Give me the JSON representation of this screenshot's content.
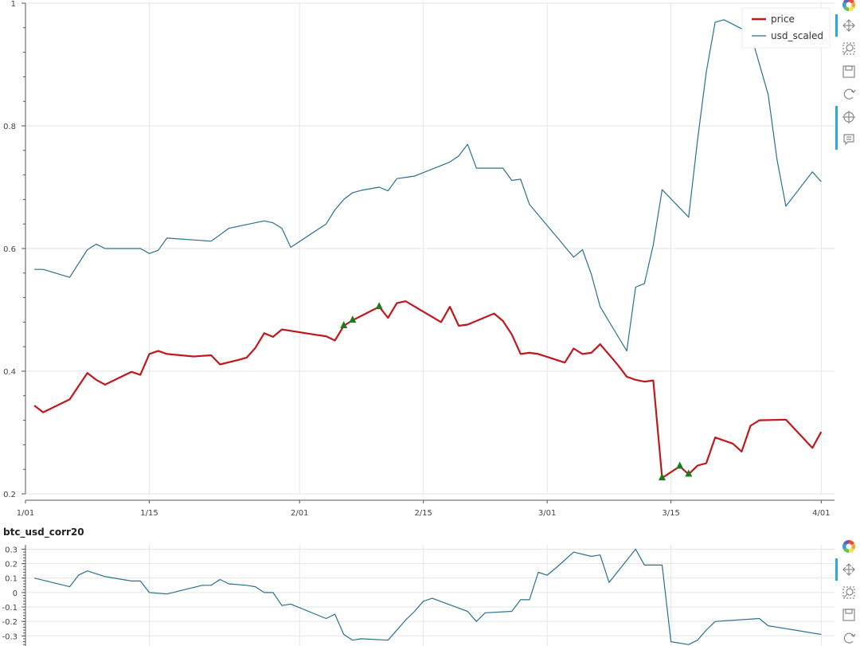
{
  "chart_data": [
    {
      "type": "line",
      "title": "",
      "xlabel": "",
      "ylabel": "",
      "x_tick_labels": [
        "1/01",
        "1/15",
        "2/01",
        "2/15",
        "3/01",
        "3/15",
        "4/01"
      ],
      "y_tick_labels": [
        "0.2",
        "0.4",
        "0.6",
        "0.8",
        "1"
      ],
      "xlim": [
        0,
        91.5
      ],
      "ylim": [
        0.2,
        1.0
      ],
      "grid": true,
      "legend_position": "top-right",
      "series": [
        {
          "name": "price",
          "color": "#c0181c",
          "points": [
            [
              1,
              0.344
            ],
            [
              2,
              0.333
            ],
            [
              5,
              0.354
            ],
            [
              7,
              0.397
            ],
            [
              8,
              0.386
            ],
            [
              9,
              0.378
            ],
            [
              12,
              0.399
            ],
            [
              13,
              0.394
            ],
            [
              14,
              0.428
            ],
            [
              15,
              0.433
            ],
            [
              16,
              0.428
            ],
            [
              19,
              0.424
            ],
            [
              21,
              0.426
            ],
            [
              22,
              0.411
            ],
            [
              24,
              0.418
            ],
            [
              25,
              0.422
            ],
            [
              26,
              0.438
            ],
            [
              27,
              0.462
            ],
            [
              28,
              0.456
            ],
            [
              29,
              0.468
            ],
            [
              33,
              0.459
            ],
            [
              34,
              0.457
            ],
            [
              35,
              0.45
            ],
            [
              36,
              0.474
            ],
            [
              37,
              0.483
            ],
            [
              40,
              0.505
            ],
            [
              41,
              0.487
            ],
            [
              42,
              0.511
            ],
            [
              43,
              0.514
            ],
            [
              47,
              0.48
            ],
            [
              48,
              0.505
            ],
            [
              49,
              0.474
            ],
            [
              50,
              0.476
            ],
            [
              53,
              0.494
            ],
            [
              54,
              0.482
            ],
            [
              55,
              0.46
            ],
            [
              56,
              0.428
            ],
            [
              57,
              0.43
            ],
            [
              58,
              0.428
            ],
            [
              61,
              0.414
            ],
            [
              62,
              0.437
            ],
            [
              63,
              0.428
            ],
            [
              64,
              0.43
            ],
            [
              65,
              0.444
            ],
            [
              67,
              0.41
            ],
            [
              68,
              0.391
            ],
            [
              69,
              0.386
            ],
            [
              70,
              0.383
            ],
            [
              71,
              0.385
            ],
            [
              72,
              0.226
            ],
            [
              74,
              0.245
            ],
            [
              75,
              0.232
            ],
            [
              76,
              0.246
            ],
            [
              77,
              0.25
            ],
            [
              78,
              0.292
            ],
            [
              80,
              0.282
            ],
            [
              81,
              0.269
            ],
            [
              82,
              0.311
            ],
            [
              83,
              0.32
            ],
            [
              86,
              0.321
            ],
            [
              89,
              0.275
            ],
            [
              90,
              0.301
            ]
          ],
          "markers": [
            [
              36,
              0.474
            ],
            [
              37,
              0.483
            ],
            [
              40,
              0.505
            ],
            [
              72,
              0.226
            ],
            [
              74,
              0.245
            ],
            [
              75,
              0.232
            ]
          ]
        },
        {
          "name": "usd_scaled",
          "color": "#2a7090",
          "points": [
            [
              1,
              0.566
            ],
            [
              2,
              0.566
            ],
            [
              5,
              0.553
            ],
            [
              7,
              0.598
            ],
            [
              8,
              0.607
            ],
            [
              9,
              0.6
            ],
            [
              13,
              0.6
            ],
            [
              14,
              0.592
            ],
            [
              15,
              0.597
            ],
            [
              16,
              0.617
            ],
            [
              21,
              0.612
            ],
            [
              23,
              0.633
            ],
            [
              27,
              0.645
            ],
            [
              28,
              0.642
            ],
            [
              29,
              0.633
            ],
            [
              30,
              0.602
            ],
            [
              34,
              0.64
            ],
            [
              35,
              0.663
            ],
            [
              36,
              0.68
            ],
            [
              37,
              0.691
            ],
            [
              38,
              0.695
            ],
            [
              40,
              0.7
            ],
            [
              41,
              0.694
            ],
            [
              42,
              0.714
            ],
            [
              44,
              0.718
            ],
            [
              48,
              0.741
            ],
            [
              49,
              0.751
            ],
            [
              50,
              0.77
            ],
            [
              51,
              0.731
            ],
            [
              54,
              0.731
            ],
            [
              55,
              0.711
            ],
            [
              56,
              0.713
            ],
            [
              57,
              0.672
            ],
            [
              62,
              0.586
            ],
            [
              63,
              0.598
            ],
            [
              64,
              0.558
            ],
            [
              65,
              0.505
            ],
            [
              68,
              0.433
            ],
            [
              69,
              0.537
            ],
            [
              70,
              0.543
            ],
            [
              71,
              0.606
            ],
            [
              72,
              0.696
            ],
            [
              75,
              0.651
            ],
            [
              76,
              0.776
            ],
            [
              77,
              0.888
            ],
            [
              78,
              0.969
            ],
            [
              79,
              0.973
            ],
            [
              82,
              0.951
            ],
            [
              84,
              0.851
            ],
            [
              85,
              0.745
            ],
            [
              86,
              0.669
            ],
            [
              89,
              0.725
            ],
            [
              90,
              0.709
            ]
          ]
        }
      ]
    },
    {
      "type": "line",
      "title": "btc_usd_corr20",
      "xlabel": "",
      "ylabel": "",
      "y_tick_labels": [
        "0.3",
        "0.2",
        "0.1",
        "0",
        "-0.1",
        "-0.2",
        "-0.3"
      ],
      "xlim": [
        0,
        91.5
      ],
      "ylim": [
        -0.37,
        0.33
      ],
      "grid": true,
      "series": [
        {
          "name": "",
          "color": "#2a7090",
          "points": [
            [
              1,
              0.1
            ],
            [
              5,
              0.04
            ],
            [
              6,
              0.12
            ],
            [
              7,
              0.15
            ],
            [
              9,
              0.11
            ],
            [
              12,
              0.08
            ],
            [
              13,
              0.08
            ],
            [
              14,
              0.0
            ],
            [
              16,
              -0.01
            ],
            [
              20,
              0.05
            ],
            [
              21,
              0.05
            ],
            [
              22,
              0.09
            ],
            [
              23,
              0.06
            ],
            [
              25,
              0.05
            ],
            [
              26,
              0.04
            ],
            [
              27,
              0.0
            ],
            [
              28,
              0.0
            ],
            [
              29,
              -0.09
            ],
            [
              30,
              -0.08
            ],
            [
              34,
              -0.18
            ],
            [
              35,
              -0.15
            ],
            [
              36,
              -0.29
            ],
            [
              37,
              -0.33
            ],
            [
              38,
              -0.32
            ],
            [
              41,
              -0.33
            ],
            [
              43,
              -0.19
            ],
            [
              44,
              -0.13
            ],
            [
              45,
              -0.06
            ],
            [
              46,
              -0.04
            ],
            [
              50,
              -0.13
            ],
            [
              51,
              -0.2
            ],
            [
              52,
              -0.14
            ],
            [
              55,
              -0.13
            ],
            [
              56,
              -0.05
            ],
            [
              57,
              -0.05
            ],
            [
              58,
              0.14
            ],
            [
              59,
              0.12
            ],
            [
              60,
              0.17
            ],
            [
              62,
              0.28
            ],
            [
              64,
              0.25
            ],
            [
              65,
              0.26
            ],
            [
              66,
              0.07
            ],
            [
              69,
              0.3
            ],
            [
              70,
              0.19
            ],
            [
              72,
              0.19
            ],
            [
              73,
              -0.34
            ],
            [
              75,
              -0.36
            ],
            [
              76,
              -0.33
            ],
            [
              77,
              -0.26
            ],
            [
              78,
              -0.2
            ],
            [
              83,
              -0.18
            ],
            [
              84,
              -0.23
            ],
            [
              86,
              -0.25
            ],
            [
              87,
              -0.26
            ],
            [
              89,
              -0.28
            ],
            [
              90,
              -0.29
            ]
          ]
        }
      ]
    }
  ],
  "toolbar": {
    "icons": [
      "bokeh-logo-icon",
      "pan-icon",
      "zoom-icon",
      "save-icon",
      "reset-icon",
      "crosshair-icon",
      "hover-icon"
    ],
    "logo_colors": [
      "#e8493a",
      "#f3a638",
      "#f7e14a",
      "#6bbf59",
      "#3a9fd6",
      "#6b5ea8"
    ],
    "active_color": "#26aae1"
  }
}
